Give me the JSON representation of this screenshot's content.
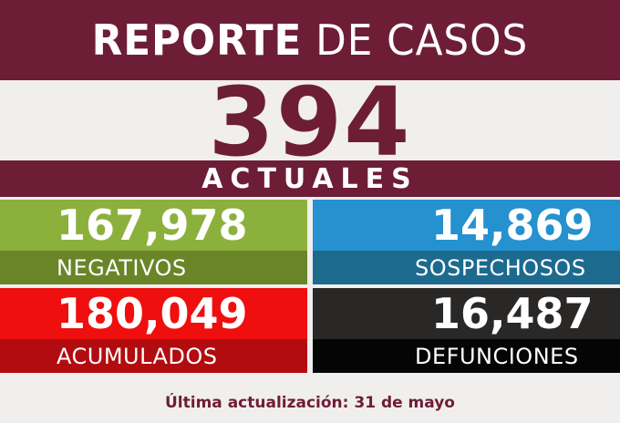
{
  "header": {
    "title_bold": "REPORTE",
    "title_rest": " DE CASOS"
  },
  "current": {
    "value": "394",
    "label": "ACTUALES"
  },
  "stats": {
    "negativos": {
      "value": "167,978",
      "label": "NEGATIVOS"
    },
    "sospechosos": {
      "value": "14,869",
      "label": "SOSPECHOSOS"
    },
    "acumulados": {
      "value": "180,049",
      "label": "ACUMULADOS"
    },
    "defunciones": {
      "value": "16,487",
      "label": "DEFUNCIONES"
    }
  },
  "footer": {
    "text": "Última actualización: 31 de mayo"
  },
  "colors": {
    "brand": "#6e1d37",
    "negativos": "#8cb03c",
    "sospechosos": "#2591cf",
    "acumulados": "#ef0f0f",
    "defunciones": "#2a2727"
  }
}
